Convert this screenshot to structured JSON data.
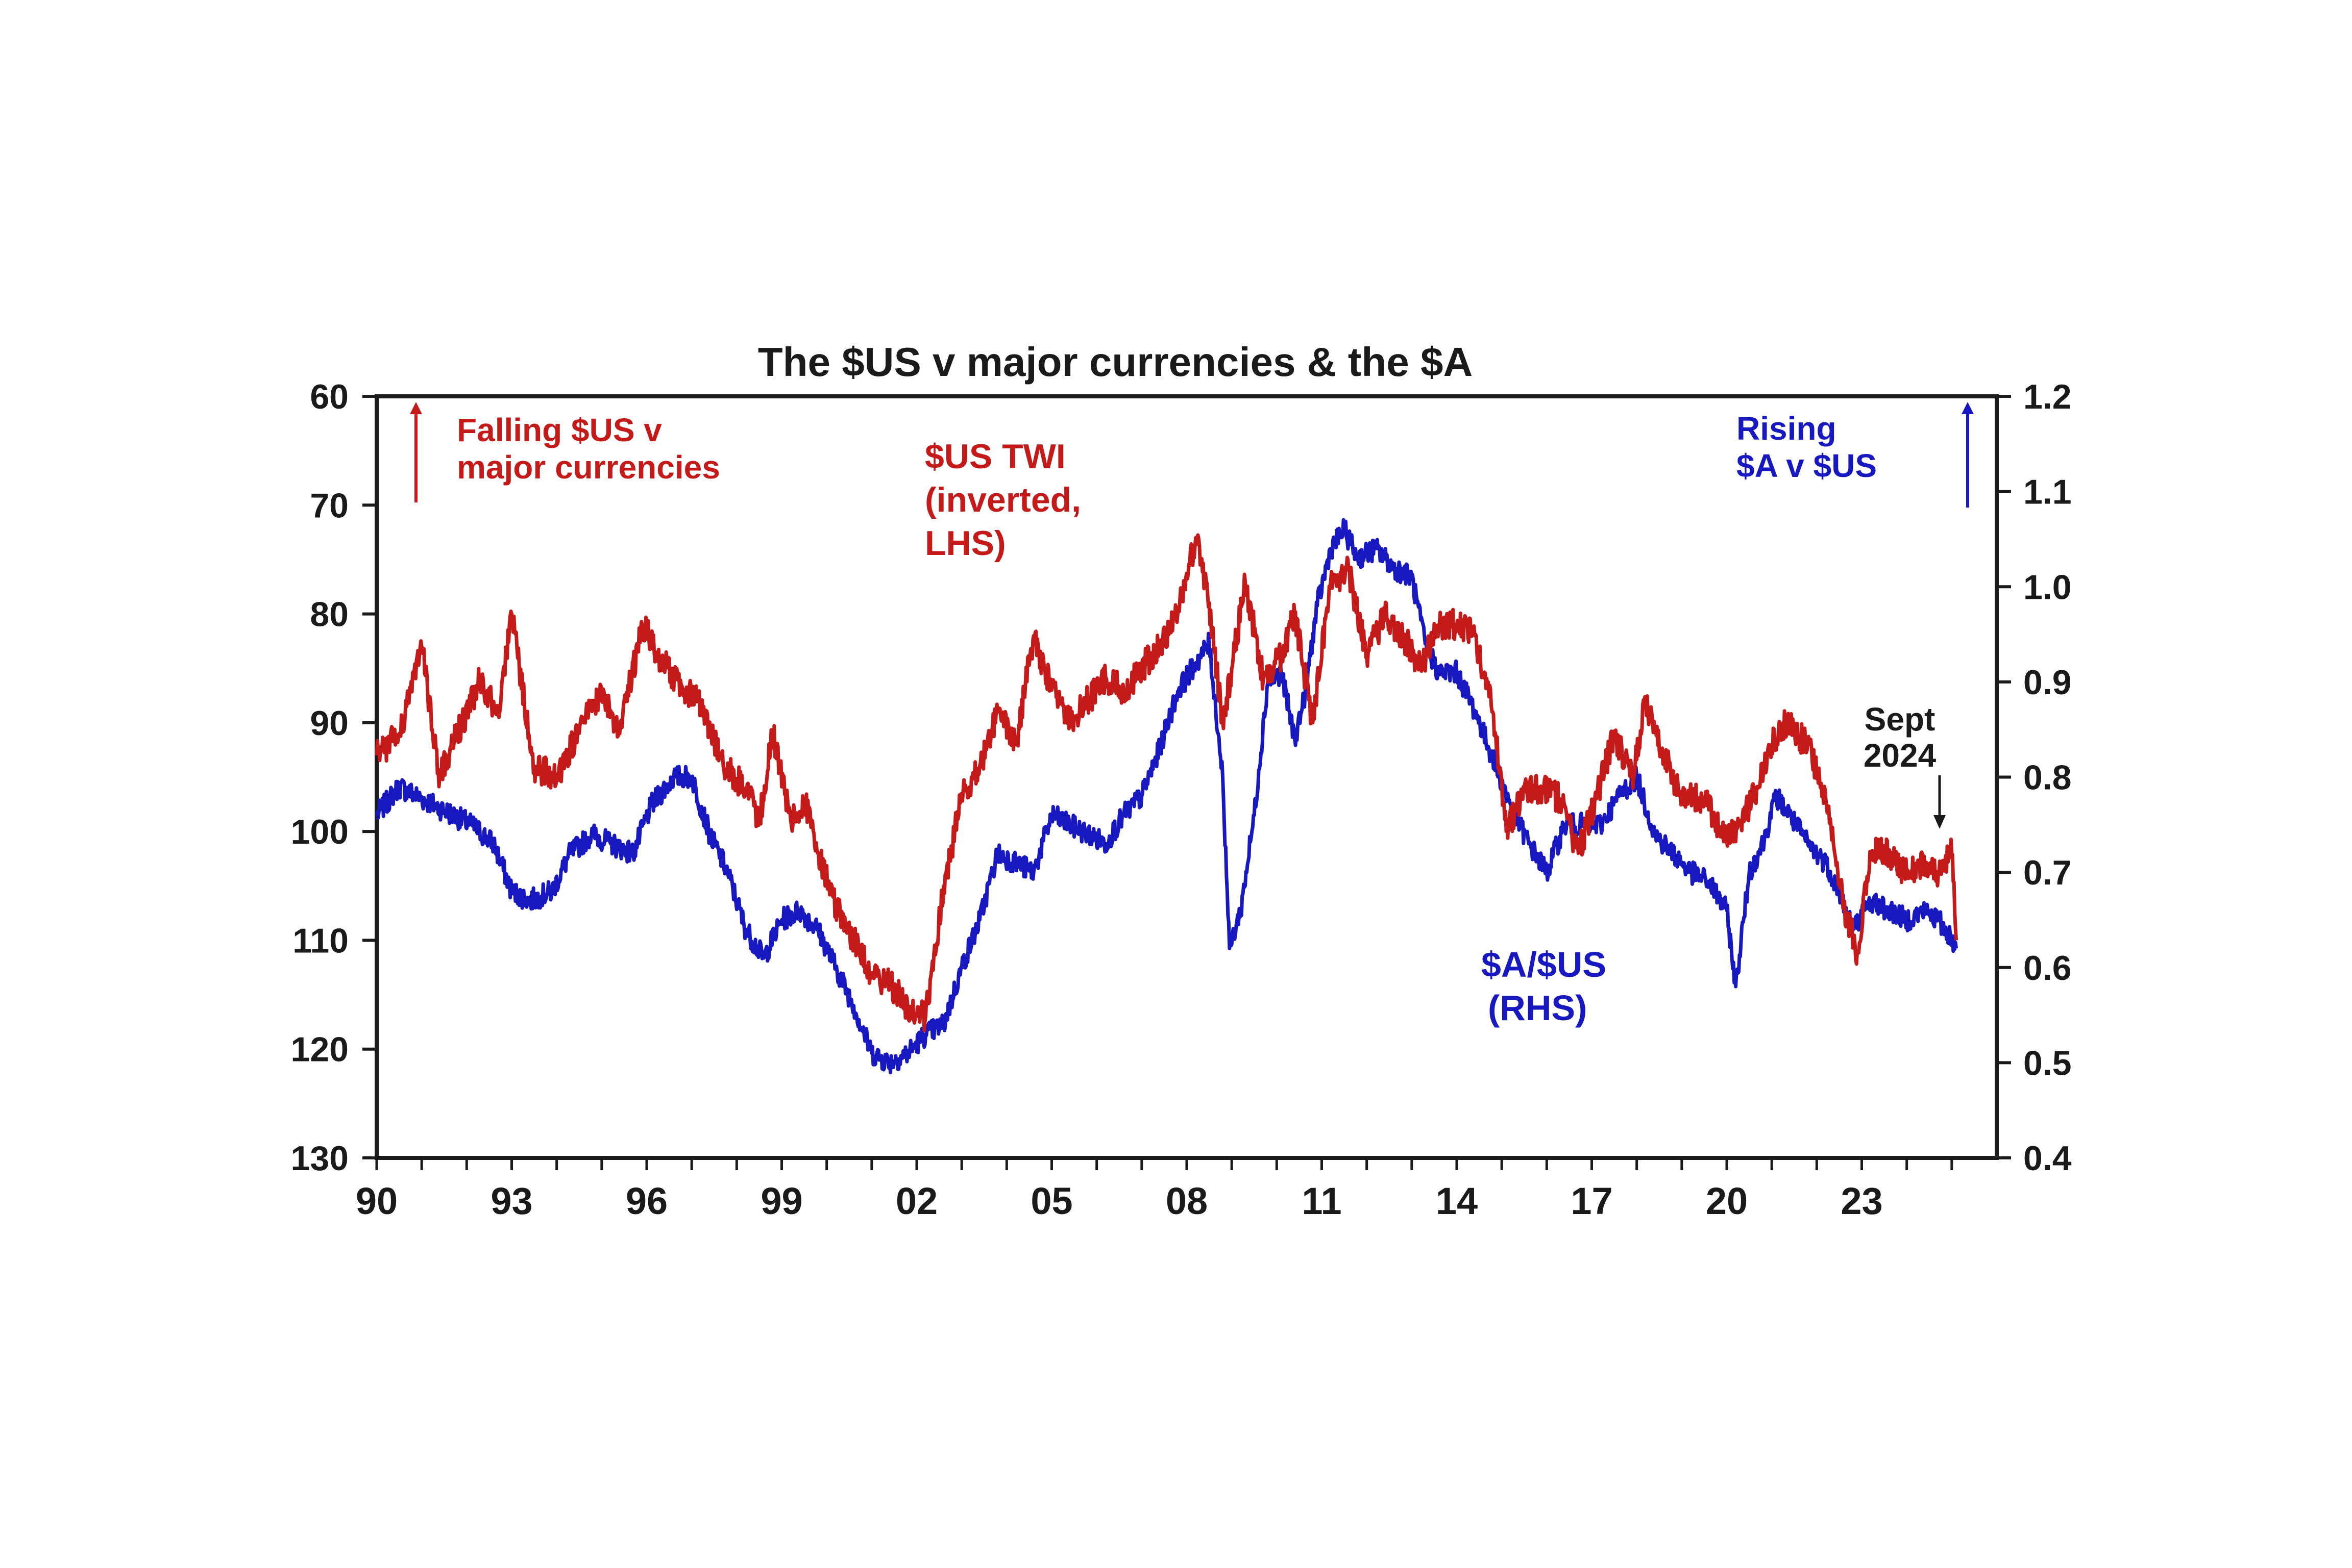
{
  "chart_data": {
    "type": "line",
    "title": "The $US v major currencies & the $A",
    "x_tick_labels": [
      "90",
      "93",
      "96",
      "99",
      "02",
      "05",
      "08",
      "11",
      "14",
      "17",
      "20",
      "23"
    ],
    "x_ticks": [
      1990,
      1993,
      1996,
      1999,
      2002,
      2005,
      2008,
      2011,
      2014,
      2017,
      2020,
      2023
    ],
    "xlim": [
      1990,
      2026
    ],
    "y_left": {
      "ticks": [
        60,
        70,
        80,
        90,
        100,
        110,
        120,
        130
      ],
      "lim": [
        60,
        130
      ],
      "inverted": true
    },
    "y_right": {
      "ticks": [
        "1.2",
        "1.1",
        "1.0",
        "0.9",
        "0.8",
        "0.7",
        "0.6",
        "0.5",
        "0.4"
      ],
      "lim": [
        0.4,
        1.2
      ]
    },
    "grid": false,
    "series": [
      {
        "name": "$US TWI (inverted, LHS)",
        "axis": "left",
        "color": "#c41a1a",
        "x": [
          1990.0,
          1990.5,
          1991.0,
          1991.4,
          1991.8,
          1992.3,
          1992.7,
          1993.0,
          1993.5,
          1994.0,
          1994.6,
          1995.0,
          1995.4,
          1995.9,
          1996.3,
          1996.8,
          1997.2,
          1997.7,
          1998.2,
          1998.5,
          1998.8,
          1999.2,
          1999.5,
          1999.8,
          2000.2,
          2000.6,
          2001.0,
          2001.4,
          2001.8,
          2002.2,
          2002.6,
          2003.0,
          2003.4,
          2003.8,
          2004.2,
          2004.6,
          2005.0,
          2005.4,
          2005.8,
          2006.2,
          2006.6,
          2007.0,
          2007.4,
          2007.8,
          2008.2,
          2008.5,
          2008.8,
          2009.0,
          2009.3,
          2009.7,
          2010.1,
          2010.4,
          2010.8,
          2011.2,
          2011.6,
          2012.0,
          2012.4,
          2012.8,
          2013.2,
          2013.6,
          2014.0,
          2014.4,
          2014.8,
          2015.1,
          2015.5,
          2015.9,
          2016.3,
          2016.7,
          2017.1,
          2017.5,
          2017.9,
          2018.2,
          2018.6,
          2019.0,
          2019.5,
          2020.0,
          2020.3,
          2020.7,
          2021.0,
          2021.3,
          2021.8,
          2022.2,
          2022.6,
          2022.9,
          2023.2,
          2023.6,
          2024.0,
          2024.4,
          2024.7,
          2025.0,
          2025.1
        ],
        "y": [
          93,
          91,
          83,
          95,
          91,
          86,
          89,
          80,
          94,
          95,
          90,
          87,
          91,
          81,
          84,
          87,
          88,
          94,
          96,
          99,
          91,
          99,
          97,
          102,
          107,
          110,
          113,
          114,
          116,
          117,
          105,
          97,
          94,
          89,
          92,
          82,
          87,
          90,
          88,
          86,
          87,
          85,
          83,
          80,
          73,
          79,
          90,
          85,
          77,
          86,
          84,
          80,
          90,
          77,
          76,
          84,
          80,
          82,
          85,
          81,
          81,
          82,
          89,
          100,
          96,
          96,
          97,
          102,
          97,
          91,
          95,
          88,
          93,
          97,
          97,
          101,
          99,
          96,
          92,
          90,
          92,
          97,
          107,
          111,
          102,
          102,
          104,
          103,
          104,
          102,
          110
        ]
      },
      {
        "name": "$A/$US (RHS)",
        "axis": "right",
        "color": "#1818c0",
        "x": [
          1990.0,
          1990.5,
          1990.9,
          1991.3,
          1991.7,
          1992.1,
          1992.6,
          1993.0,
          1993.4,
          1993.9,
          1994.3,
          1994.8,
          1995.2,
          1995.7,
          1996.1,
          1996.6,
          1997.0,
          1997.4,
          1997.8,
          1998.2,
          1998.6,
          1999.0,
          1999.4,
          1999.8,
          2000.2,
          2000.6,
          2001.0,
          2001.4,
          2001.8,
          2002.2,
          2002.6,
          2003.0,
          2003.4,
          2003.8,
          2004.2,
          2004.6,
          2005.0,
          2005.4,
          2005.8,
          2006.2,
          2006.6,
          2007.0,
          2007.4,
          2007.8,
          2008.2,
          2008.5,
          2008.8,
          2008.95,
          2009.2,
          2009.5,
          2009.8,
          2010.1,
          2010.4,
          2010.6,
          2010.9,
          2011.2,
          2011.5,
          2011.8,
          2012.2,
          2012.6,
          2013.0,
          2013.3,
          2013.6,
          2014.0,
          2014.4,
          2014.8,
          2015.2,
          2015.6,
          2016.0,
          2016.4,
          2016.8,
          2017.2,
          2017.6,
          2018.0,
          2018.4,
          2018.8,
          2019.2,
          2019.6,
          2020.0,
          2020.2,
          2020.5,
          2020.8,
          2021.1,
          2021.4,
          2021.8,
          2022.2,
          2022.5,
          2022.8,
          2023.2,
          2023.6,
          2024.0,
          2024.4,
          2024.7,
          2025.0,
          2025.1
        ],
        "y": [
          0.76,
          0.79,
          0.78,
          0.77,
          0.76,
          0.75,
          0.73,
          0.68,
          0.67,
          0.68,
          0.72,
          0.74,
          0.73,
          0.72,
          0.77,
          0.8,
          0.8,
          0.74,
          0.7,
          0.64,
          0.61,
          0.65,
          0.66,
          0.64,
          0.6,
          0.56,
          0.51,
          0.5,
          0.51,
          0.53,
          0.54,
          0.6,
          0.65,
          0.72,
          0.71,
          0.7,
          0.76,
          0.75,
          0.74,
          0.73,
          0.76,
          0.78,
          0.83,
          0.89,
          0.92,
          0.94,
          0.8,
          0.62,
          0.66,
          0.76,
          0.9,
          0.91,
          0.84,
          0.88,
          0.98,
          1.04,
          1.06,
          1.03,
          1.04,
          1.02,
          1.01,
          0.94,
          0.91,
          0.91,
          0.87,
          0.82,
          0.77,
          0.73,
          0.7,
          0.75,
          0.75,
          0.75,
          0.78,
          0.8,
          0.74,
          0.72,
          0.7,
          0.69,
          0.66,
          0.58,
          0.7,
          0.73,
          0.78,
          0.76,
          0.73,
          0.71,
          0.68,
          0.64,
          0.67,
          0.66,
          0.65,
          0.66,
          0.65,
          0.63,
          0.62
        ]
      }
    ],
    "annotations": {
      "falling": [
        "Falling $US v",
        "major currencies"
      ],
      "twi": [
        "$US TWI",
        "(inverted,",
        "LHS)"
      ],
      "rising": [
        "Rising",
        "$A v $US"
      ],
      "aud": [
        "$A/$US",
        "(RHS)"
      ],
      "sept": [
        "Sept",
        "2024"
      ]
    }
  }
}
